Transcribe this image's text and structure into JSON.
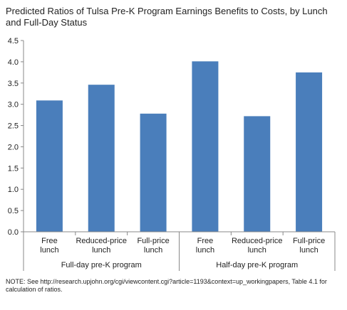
{
  "chart_data": {
    "type": "bar",
    "title": "Predicted Ratios of Tulsa Pre-K Program Earnings Benefits to Costs, by Lunch and Full-Day Status",
    "categories": [
      [
        "Free",
        "lunch"
      ],
      [
        "Reduced-price",
        "lunch"
      ],
      [
        "Full-price",
        "lunch"
      ],
      [
        "Free",
        "lunch"
      ],
      [
        "Reduced-price",
        "lunch"
      ],
      [
        "Full-price",
        "lunch"
      ]
    ],
    "groups": [
      {
        "label": "Full-day pre-K program",
        "categories": [
          0,
          1,
          2
        ]
      },
      {
        "label": "Half-day pre-K program",
        "categories": [
          3,
          4,
          5
        ]
      }
    ],
    "values": [
      3.09,
      3.46,
      2.78,
      4.01,
      2.72,
      3.75
    ],
    "ylim": [
      0,
      4.5
    ],
    "yticks": [
      "0.0",
      "0.5",
      "1.0",
      "1.5",
      "2.0",
      "2.5",
      "3.0",
      "3.5",
      "4.0",
      "4.5"
    ],
    "xlabel": "",
    "ylabel": "",
    "grid": false,
    "bar_color": "#4a7ebb",
    "note": "NOTE: See http://research.upjohn.org/cgi/viewcontent.cgi?article=1193&context=up_workingpapers, Table 4.1 for calculation of ratios."
  }
}
